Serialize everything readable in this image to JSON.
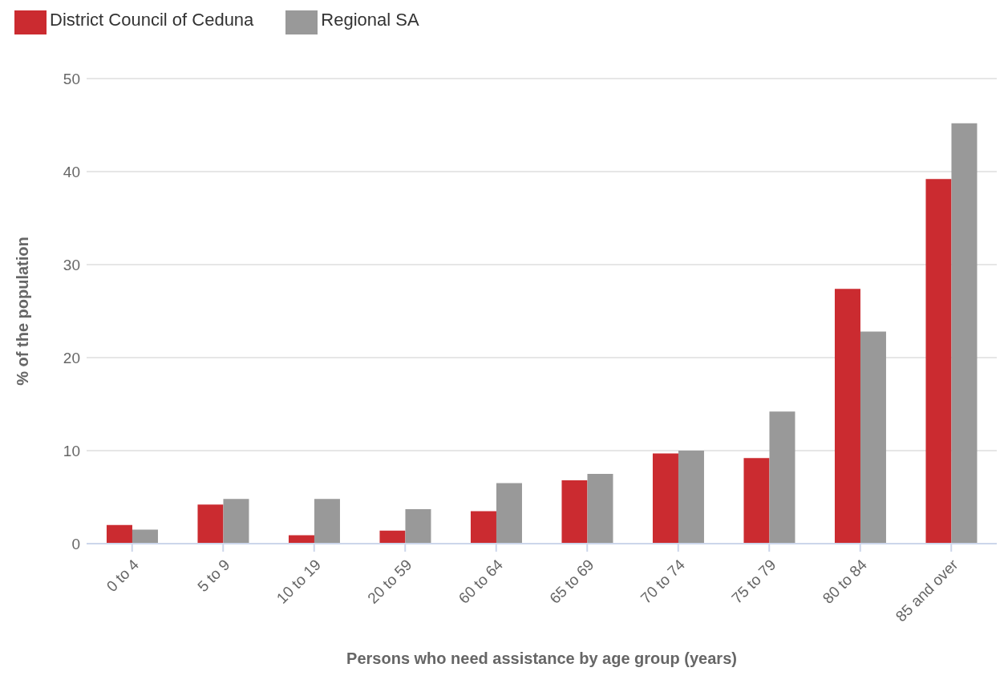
{
  "chart_data": {
    "type": "bar",
    "xlabel": "Persons who need assistance by age group (years)",
    "ylabel": "% of the population",
    "categories": [
      "0 to 4",
      "5 to 9",
      "10 to 19",
      "20 to 59",
      "60 to 64",
      "65 to 69",
      "70 to 74",
      "75 to 79",
      "80 to 84",
      "85 and over"
    ],
    "series": [
      {
        "name": "District Council of Ceduna",
        "color": "#cb2b30",
        "values": [
          2.0,
          4.2,
          0.9,
          1.4,
          3.5,
          6.8,
          9.7,
          9.2,
          27.4,
          39.2
        ]
      },
      {
        "name": "Regional SA",
        "color": "#999999",
        "values": [
          1.5,
          4.8,
          4.8,
          3.7,
          6.5,
          7.5,
          10.0,
          14.2,
          22.8,
          45.2
        ]
      }
    ],
    "ylim": [
      0,
      50
    ],
    "yticks": [
      0,
      10,
      20,
      30,
      40,
      50
    ],
    "grid": "y",
    "legend": "top left"
  }
}
